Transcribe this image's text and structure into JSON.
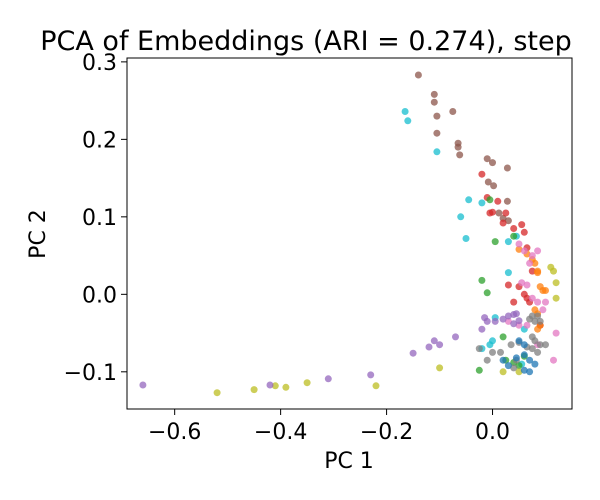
{
  "chart_data": {
    "type": "scatter",
    "title": "PCA of Embeddings (ARI = 0.274), step",
    "xlabel": "PC 1",
    "ylabel": "PC 2",
    "xlim": [
      -0.69,
      0.15
    ],
    "ylim": [
      -0.148,
      0.305
    ],
    "xticks": [
      -0.6,
      -0.4,
      -0.2,
      0.0
    ],
    "xtick_labels": [
      "−0.6",
      "−0.4",
      "−0.2",
      "0.0"
    ],
    "yticks": [
      -0.1,
      0.0,
      0.1,
      0.2,
      0.3
    ],
    "ytick_labels": [
      "−0.1",
      "0.0",
      "0.1",
      "0.2",
      "0.3"
    ],
    "grid": false,
    "legend": "none",
    "series": [
      {
        "color": "#8c564b",
        "points": [
          [
            -0.14,
            0.283
          ],
          [
            -0.11,
            0.258
          ],
          [
            -0.11,
            0.248
          ],
          [
            -0.105,
            0.23
          ],
          [
            -0.075,
            0.236
          ],
          [
            -0.105,
            0.208
          ],
          [
            -0.065,
            0.195
          ],
          [
            -0.065,
            0.19
          ],
          [
            -0.062,
            0.18
          ],
          [
            -0.01,
            0.175
          ],
          [
            0.0,
            0.17
          ],
          [
            0.028,
            0.163
          ],
          [
            -0.008,
            0.145
          ],
          [
            0.002,
            0.14
          ],
          [
            0.028,
            0.12
          ],
          [
            0.012,
            0.105
          ],
          [
            0.02,
            0.098
          ],
          [
            0.03,
            0.095
          ]
        ]
      },
      {
        "color": "#17becf",
        "points": [
          [
            -0.165,
            0.236
          ],
          [
            -0.16,
            0.224
          ],
          [
            -0.105,
            0.184
          ],
          [
            -0.045,
            0.122
          ],
          [
            -0.02,
            0.118
          ],
          [
            -0.06,
            0.1
          ],
          [
            -0.05,
            0.072
          ],
          [
            0.045,
            0.075
          ],
          [
            0.03,
            0.068
          ],
          [
            0.03,
            0.028
          ],
          [
            0.005,
            -0.03
          ],
          [
            0.0,
            -0.06
          ],
          [
            -0.02,
            -0.07
          ],
          [
            -0.005,
            -0.065
          ],
          [
            0.06,
            -0.045
          ],
          [
            0.055,
            -0.09
          ]
        ]
      },
      {
        "color": "#d62728",
        "points": [
          [
            -0.02,
            0.155
          ],
          [
            -0.01,
            0.125
          ],
          [
            0.01,
            0.12
          ],
          [
            -0.005,
            0.105
          ],
          [
            0.0,
            0.106
          ],
          [
            0.025,
            0.105
          ],
          [
            0.02,
            0.092
          ],
          [
            0.04,
            0.085
          ],
          [
            0.055,
            0.09
          ],
          [
            0.06,
            0.08
          ],
          [
            0.065,
            0.06
          ],
          [
            0.075,
            0.03
          ],
          [
            0.03,
            0.012
          ],
          [
            0.05,
            0.01
          ],
          [
            0.06,
            0.0
          ],
          [
            0.04,
            -0.01
          ],
          [
            0.065,
            -0.005
          ],
          [
            0.07,
            -0.01
          ],
          [
            0.09,
            -0.04
          ]
        ]
      },
      {
        "color": "#2ca02c",
        "points": [
          [
            -0.005,
            0.122
          ],
          [
            0.005,
            0.068
          ],
          [
            0.04,
            0.075
          ],
          [
            -0.02,
            0.018
          ],
          [
            -0.01,
            0.002
          ],
          [
            0.02,
            -0.055
          ],
          [
            -0.025,
            -0.098
          ],
          [
            0.025,
            -0.085
          ],
          [
            0.04,
            -0.088
          ],
          [
            0.05,
            -0.092
          ],
          [
            0.06,
            -0.08
          ]
        ]
      },
      {
        "color": "#ff7f0e",
        "points": [
          [
            0.05,
            0.058
          ],
          [
            0.065,
            0.052
          ],
          [
            0.075,
            0.045
          ],
          [
            0.08,
            0.04
          ],
          [
            0.085,
            0.03
          ],
          [
            0.085,
            0.028
          ],
          [
            0.09,
            0.01
          ],
          [
            0.095,
            0.005
          ],
          [
            0.1,
            0.005
          ],
          [
            0.08,
            -0.02
          ],
          [
            0.085,
            -0.025
          ],
          [
            0.09,
            -0.04
          ],
          [
            0.085,
            -0.045
          ]
        ]
      },
      {
        "color": "#e377c2",
        "points": [
          [
            0.05,
            0.065
          ],
          [
            0.06,
            0.056
          ],
          [
            0.07,
            0.04
          ],
          [
            0.075,
            0.05
          ],
          [
            0.085,
            0.056
          ],
          [
            0.055,
            0.015
          ],
          [
            0.065,
            0.012
          ],
          [
            0.075,
            -0.005
          ],
          [
            0.085,
            -0.01
          ],
          [
            0.1,
            -0.01
          ],
          [
            0.095,
            -0.02
          ],
          [
            0.065,
            -0.04
          ],
          [
            0.03,
            -0.035
          ],
          [
            0.12,
            -0.05
          ],
          [
            0.115,
            -0.085
          ],
          [
            0.085,
            -0.065
          ],
          [
            0.05,
            -0.04
          ]
        ]
      },
      {
        "color": "#bcbd22",
        "points": [
          [
            0.11,
            0.035
          ],
          [
            0.115,
            0.03
          ],
          [
            0.12,
            0.015
          ],
          [
            0.12,
            -0.005
          ],
          [
            -0.52,
            -0.127
          ],
          [
            -0.45,
            -0.123
          ],
          [
            -0.41,
            -0.118
          ],
          [
            -0.39,
            -0.12
          ],
          [
            -0.35,
            -0.114
          ],
          [
            -0.22,
            -0.118
          ],
          [
            -0.1,
            -0.095
          ],
          [
            0.02,
            -0.1
          ],
          [
            0.05,
            -0.1
          ]
        ]
      },
      {
        "color": "#9467bd",
        "points": [
          [
            -0.66,
            -0.117
          ],
          [
            -0.42,
            -0.117
          ],
          [
            -0.31,
            -0.109
          ],
          [
            -0.23,
            -0.104
          ],
          [
            -0.15,
            -0.076
          ],
          [
            -0.12,
            -0.068
          ],
          [
            -0.11,
            -0.06
          ],
          [
            -0.1,
            -0.065
          ],
          [
            -0.07,
            -0.055
          ],
          [
            -0.02,
            -0.045
          ],
          [
            -0.015,
            -0.03
          ],
          [
            -0.01,
            -0.035
          ],
          [
            0.005,
            -0.035
          ],
          [
            0.02,
            -0.032
          ],
          [
            0.03,
            -0.028
          ],
          [
            0.04,
            -0.026
          ],
          [
            0.045,
            -0.025
          ],
          [
            0.04,
            -0.038
          ],
          [
            0.05,
            -0.034
          ]
        ]
      },
      {
        "color": "#7f7f7f",
        "points": [
          [
            -0.025,
            -0.07
          ],
          [
            -0.01,
            -0.085
          ],
          [
            0.0,
            -0.075
          ],
          [
            0.015,
            -0.075
          ],
          [
            0.035,
            -0.065
          ],
          [
            0.05,
            -0.062
          ],
          [
            0.065,
            -0.068
          ],
          [
            0.07,
            -0.032
          ],
          [
            0.075,
            -0.028
          ],
          [
            0.085,
            -0.028
          ],
          [
            0.08,
            -0.035
          ],
          [
            0.09,
            -0.035
          ],
          [
            0.075,
            -0.055
          ],
          [
            0.08,
            -0.06
          ],
          [
            0.09,
            -0.065
          ],
          [
            0.1,
            -0.065
          ],
          [
            0.075,
            -0.07
          ],
          [
            0.085,
            -0.075
          ],
          [
            0.045,
            -0.085
          ],
          [
            0.04,
            -0.095
          ]
        ]
      },
      {
        "color": "#1f77b4",
        "points": [
          [
            0.02,
            -0.085
          ],
          [
            0.045,
            -0.082
          ],
          [
            0.06,
            -0.078
          ],
          [
            0.07,
            -0.085
          ],
          [
            0.08,
            -0.09
          ],
          [
            0.07,
            -0.1
          ],
          [
            0.06,
            -0.098
          ],
          [
            0.03,
            -0.092
          ],
          [
            0.05,
            -0.06
          ],
          [
            0.06,
            -0.065
          ]
        ]
      }
    ]
  }
}
